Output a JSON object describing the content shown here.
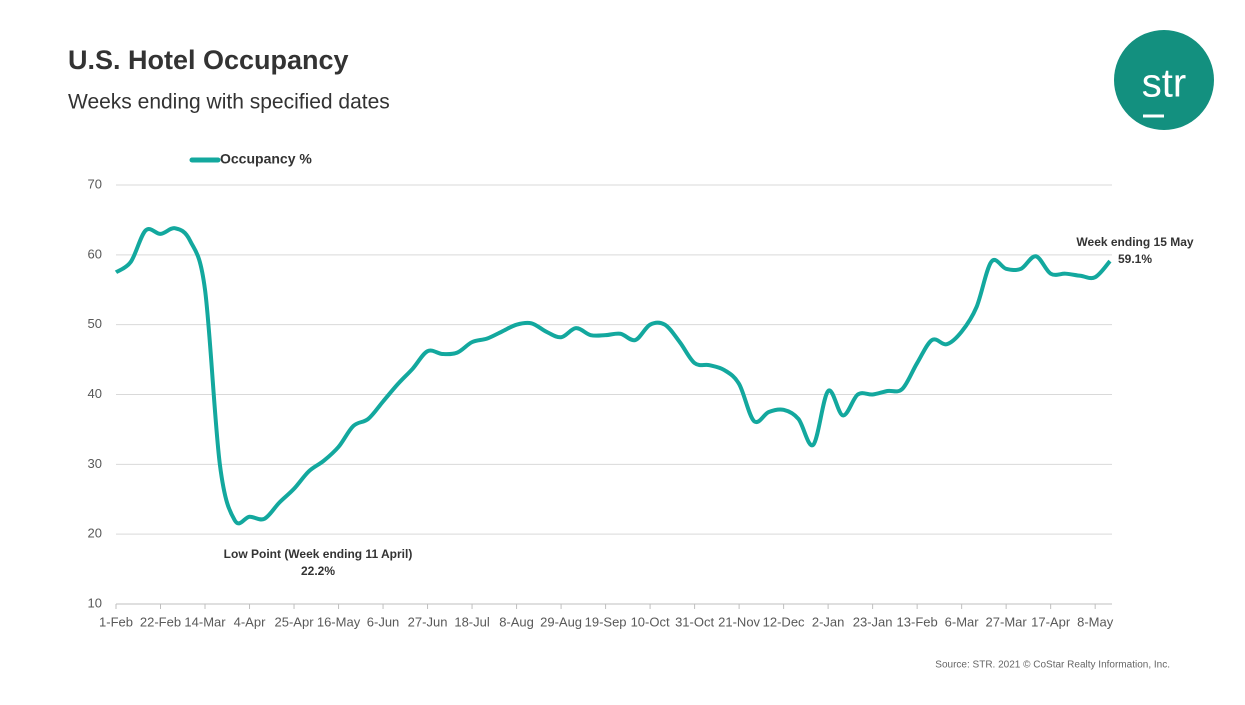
{
  "chart_data": {
    "type": "line",
    "title": "U.S. Hotel Occupancy",
    "subtitle": "Weeks ending with specified dates",
    "logo": "str",
    "source": "Source: STR. 2021 © CoStar Realty Information, Inc.",
    "categories": [
      "1-Feb",
      null,
      null,
      "22-Feb",
      null,
      null,
      "14-Mar",
      null,
      null,
      "4-Apr",
      null,
      null,
      "25-Apr",
      null,
      null,
      "16-May",
      null,
      null,
      "6-Jun",
      null,
      null,
      "27-Jun",
      null,
      null,
      "18-Jul",
      null,
      null,
      "8-Aug",
      null,
      null,
      "29-Aug",
      null,
      null,
      "19-Sep",
      null,
      null,
      "10-Oct",
      null,
      null,
      "31-Oct",
      null,
      null,
      "21-Nov",
      null,
      null,
      "12-Dec",
      null,
      null,
      "2-Jan",
      null,
      null,
      "23-Jan",
      null,
      null,
      "13-Feb",
      null,
      null,
      "6-Mar",
      null,
      null,
      "27-Mar",
      null,
      null,
      "17-Apr",
      null,
      null,
      "8-May",
      null
    ],
    "series": [
      {
        "name": "Occupancy %",
        "color": "#13a89e",
        "values": [
          57.5,
          59,
          63.5,
          63,
          63.8,
          62,
          55,
          30,
          22,
          22.5,
          22.2,
          24.5,
          26.5,
          29,
          30.5,
          32.5,
          35.5,
          36.5,
          39,
          41.5,
          43.7,
          46.2,
          45.8,
          46,
          47.5,
          48,
          49,
          50,
          50.2,
          49,
          48.2,
          49.5,
          48.5,
          48.5,
          48.7,
          47.8,
          50,
          50,
          47.5,
          44.5,
          44.2,
          43.5,
          41.5,
          36.2,
          37.5,
          37.8,
          36.5,
          32.8,
          40.5,
          37,
          40,
          40,
          40.5,
          40.8,
          44.5,
          47.8,
          47.2,
          49,
          52.5,
          59,
          58,
          58,
          59.8,
          57.3,
          57.3,
          57,
          56.8,
          59.1
        ]
      }
    ],
    "ylim": [
      10,
      70
    ],
    "yticks": [
      10,
      20,
      30,
      40,
      50,
      60,
      70
    ],
    "grid": true,
    "legend": "top",
    "annotations": [
      {
        "text": "Low Point (Week ending 11 April)",
        "value_label": "22.2%",
        "index": 10
      },
      {
        "text": "Week ending 15 May",
        "value_label": "59.1%",
        "index": 67
      }
    ]
  }
}
